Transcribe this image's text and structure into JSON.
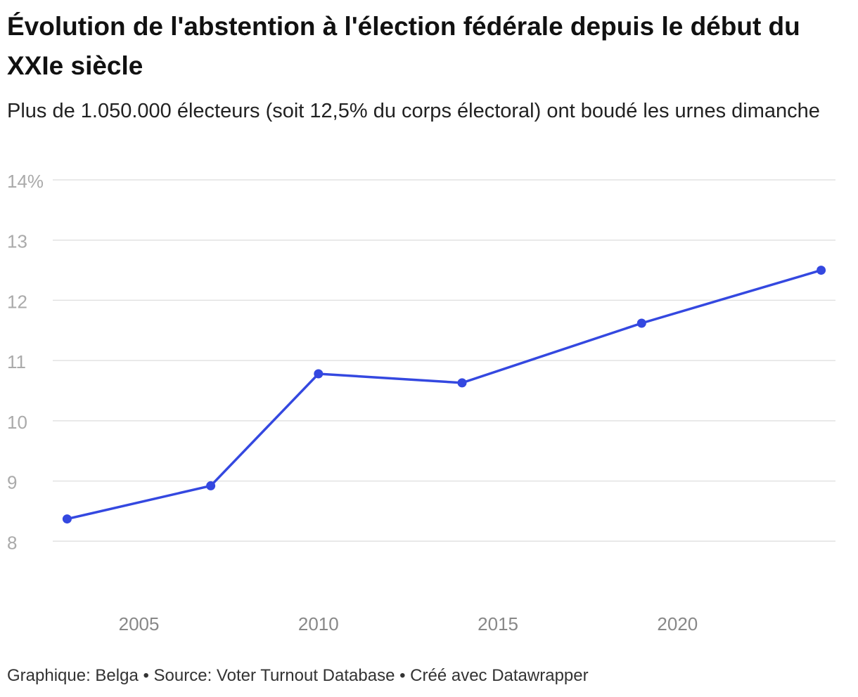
{
  "chart_data": {
    "type": "line",
    "title": "Évolution de l'abstention à l'élection fédérale depuis le début du XXIe siècle",
    "subtitle": "Plus de 1.050.000 électeurs (soit 12,5% du corps électoral) ont boudé les urnes dimanche",
    "footer": "Graphique: Belga • Source: Voter Turnout Database • Créé avec Datawrapper",
    "x": [
      2003,
      2007,
      2010,
      2014,
      2019,
      2024
    ],
    "series": [
      {
        "name": "Abstention",
        "color": "#3448e0",
        "values": [
          8.37,
          8.92,
          10.78,
          10.63,
          11.62,
          12.5
        ]
      }
    ],
    "xlim": [
      2002.6,
      2024.4
    ],
    "xticks": [
      2005,
      2010,
      2015,
      2020
    ],
    "ylim": [
      7,
      14
    ],
    "yticks": [
      8,
      9,
      10,
      11,
      12,
      13,
      {
        "value": 14,
        "label": "14%"
      }
    ],
    "grid": true
  }
}
